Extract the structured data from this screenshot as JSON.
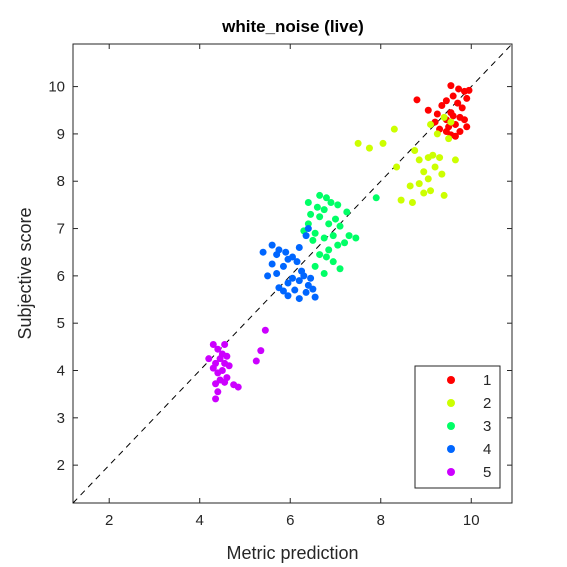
{
  "chart_data": {
    "type": "scatter",
    "title": "white_noise (live)",
    "xlabel": "Metric prediction",
    "ylabel": "Subjective score",
    "xlim": [
      1.2,
      10.9
    ],
    "ylim": [
      1.2,
      10.9
    ],
    "xticks": [
      "2",
      "4",
      "6",
      "8",
      "10"
    ],
    "yticks": [
      "2",
      "3",
      "4",
      "5",
      "6",
      "7",
      "8",
      "9",
      "10"
    ],
    "reference_line": "y = x (dashed)",
    "legend_position": "bottom-right",
    "series": [
      {
        "name": "1",
        "color": "#ff0000",
        "points": [
          [
            9.55,
            10.02
          ],
          [
            9.72,
            9.95
          ],
          [
            9.85,
            9.9
          ],
          [
            9.95,
            9.92
          ],
          [
            9.6,
            9.8
          ],
          [
            9.9,
            9.75
          ],
          [
            9.45,
            9.7
          ],
          [
            8.8,
            9.72
          ],
          [
            9.7,
            9.65
          ],
          [
            9.35,
            9.6
          ],
          [
            9.05,
            9.5
          ],
          [
            9.8,
            9.55
          ],
          [
            9.55,
            9.45
          ],
          [
            9.25,
            9.42
          ],
          [
            9.6,
            9.38
          ],
          [
            9.75,
            9.35
          ],
          [
            9.45,
            9.3
          ],
          [
            9.85,
            9.3
          ],
          [
            9.2,
            9.25
          ],
          [
            9.65,
            9.2
          ],
          [
            9.5,
            9.15
          ],
          [
            9.9,
            9.15
          ],
          [
            9.3,
            9.1
          ],
          [
            9.75,
            9.05
          ],
          [
            9.55,
            8.98
          ],
          [
            9.45,
            9.05
          ],
          [
            9.65,
            8.95
          ]
        ]
      },
      {
        "name": "2",
        "color": "#ccff00",
        "points": [
          [
            9.4,
            9.35
          ],
          [
            9.1,
            9.2
          ],
          [
            9.55,
            9.25
          ],
          [
            8.3,
            9.1
          ],
          [
            9.25,
            9.0
          ],
          [
            9.5,
            8.9
          ],
          [
            8.05,
            8.8
          ],
          [
            7.5,
            8.8
          ],
          [
            8.75,
            8.65
          ],
          [
            7.75,
            8.7
          ],
          [
            9.15,
            8.55
          ],
          [
            9.3,
            8.5
          ],
          [
            9.05,
            8.5
          ],
          [
            8.85,
            8.45
          ],
          [
            9.65,
            8.45
          ],
          [
            8.35,
            8.3
          ],
          [
            9.2,
            8.3
          ],
          [
            8.95,
            8.2
          ],
          [
            9.35,
            8.15
          ],
          [
            9.05,
            8.05
          ],
          [
            8.85,
            7.95
          ],
          [
            8.65,
            7.9
          ],
          [
            9.1,
            7.8
          ],
          [
            8.95,
            7.75
          ],
          [
            9.4,
            7.7
          ],
          [
            8.45,
            7.6
          ],
          [
            8.7,
            7.55
          ]
        ]
      },
      {
        "name": "3",
        "color": "#00ff66",
        "points": [
          [
            6.65,
            7.7
          ],
          [
            6.8,
            7.65
          ],
          [
            7.9,
            7.65
          ],
          [
            6.4,
            7.55
          ],
          [
            6.9,
            7.55
          ],
          [
            7.05,
            7.5
          ],
          [
            6.6,
            7.45
          ],
          [
            6.75,
            7.4
          ],
          [
            7.25,
            7.35
          ],
          [
            6.45,
            7.3
          ],
          [
            6.65,
            7.25
          ],
          [
            7.0,
            7.2
          ],
          [
            6.4,
            7.1
          ],
          [
            6.85,
            7.1
          ],
          [
            7.1,
            7.05
          ],
          [
            6.3,
            6.95
          ],
          [
            6.55,
            6.9
          ],
          [
            6.95,
            6.85
          ],
          [
            6.75,
            6.8
          ],
          [
            7.3,
            6.85
          ],
          [
            7.45,
            6.8
          ],
          [
            6.5,
            6.75
          ],
          [
            7.2,
            6.7
          ],
          [
            7.05,
            6.65
          ],
          [
            6.85,
            6.55
          ],
          [
            6.65,
            6.45
          ],
          [
            6.8,
            6.4
          ],
          [
            6.95,
            6.3
          ],
          [
            6.55,
            6.2
          ],
          [
            7.1,
            6.15
          ],
          [
            6.75,
            6.05
          ]
        ]
      },
      {
        "name": "4",
        "color": "#0066ff",
        "points": [
          [
            6.4,
            7.0
          ],
          [
            6.35,
            6.85
          ],
          [
            6.2,
            6.6
          ],
          [
            5.4,
            6.5
          ],
          [
            5.7,
            6.45
          ],
          [
            6.05,
            6.4
          ],
          [
            5.95,
            6.35
          ],
          [
            6.15,
            6.3
          ],
          [
            5.6,
            6.25
          ],
          [
            5.85,
            6.2
          ],
          [
            6.25,
            6.1
          ],
          [
            5.7,
            6.05
          ],
          [
            5.5,
            6.0
          ],
          [
            6.3,
            6.0
          ],
          [
            6.45,
            5.95
          ],
          [
            6.2,
            5.9
          ],
          [
            5.95,
            5.85
          ],
          [
            6.4,
            5.8
          ],
          [
            5.75,
            5.75
          ],
          [
            6.5,
            5.72
          ],
          [
            6.1,
            5.7
          ],
          [
            5.85,
            5.68
          ],
          [
            6.35,
            5.65
          ],
          [
            5.95,
            5.58
          ],
          [
            6.55,
            5.55
          ],
          [
            6.2,
            5.52
          ],
          [
            5.6,
            6.65
          ],
          [
            5.75,
            6.55
          ],
          [
            5.9,
            6.5
          ],
          [
            6.05,
            5.95
          ]
        ]
      },
      {
        "name": "5",
        "color": "#cc00ff",
        "points": [
          [
            5.45,
            4.85
          ],
          [
            4.3,
            4.55
          ],
          [
            4.55,
            4.55
          ],
          [
            4.4,
            4.45
          ],
          [
            5.35,
            4.42
          ],
          [
            4.5,
            4.35
          ],
          [
            4.6,
            4.3
          ],
          [
            4.2,
            4.25
          ],
          [
            4.45,
            4.25
          ],
          [
            5.25,
            4.2
          ],
          [
            4.35,
            4.15
          ],
          [
            4.55,
            4.15
          ],
          [
            4.65,
            4.1
          ],
          [
            4.3,
            4.05
          ],
          [
            4.5,
            4.0
          ],
          [
            4.4,
            3.95
          ],
          [
            4.6,
            3.85
          ],
          [
            4.45,
            3.8
          ],
          [
            4.35,
            3.72
          ],
          [
            4.75,
            3.7
          ],
          [
            4.85,
            3.65
          ],
          [
            4.55,
            3.75
          ],
          [
            4.4,
            3.55
          ],
          [
            4.35,
            3.4
          ]
        ]
      }
    ]
  }
}
